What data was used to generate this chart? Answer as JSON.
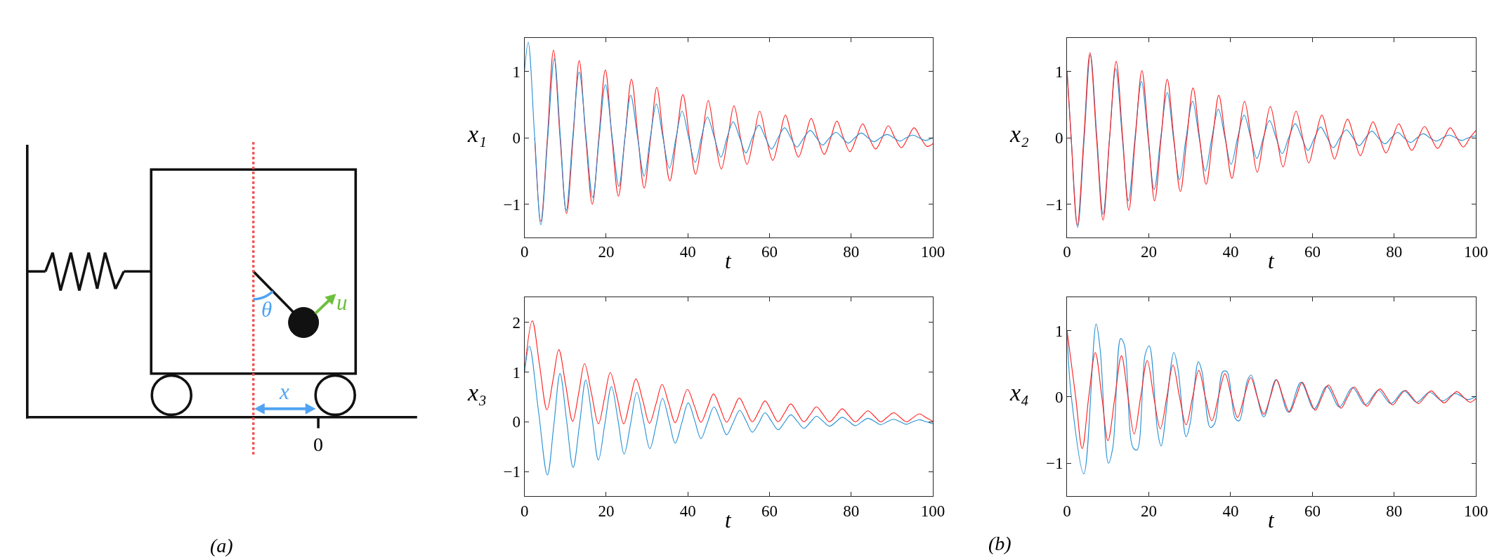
{
  "chart_data": [
    {
      "type": "other",
      "annotations": [
        "θ",
        "u",
        "x",
        "0",
        "(a)"
      ]
    },
    {
      "type": "line",
      "xlabel": "t",
      "ylabel": "x₁",
      "xlim": [
        0,
        100
      ],
      "xticks": [
        0,
        20,
        40,
        60,
        80,
        100
      ],
      "ylim": [
        -1.5,
        1.5
      ],
      "yticks": [
        -1,
        0,
        1
      ],
      "series": [
        {
          "color": "#ff2222",
          "x": [
            2.5,
            4.0,
            5.6,
            7.1,
            8.7,
            10.3,
            11.9,
            13.4,
            15.0,
            16.6,
            18.2,
            19.8,
            21.4,
            23.0,
            24.6,
            26.2,
            27.8,
            29.3,
            30.9,
            32.4,
            34.0,
            35.6,
            37.2,
            38.8,
            40.4,
            41.9,
            43.5,
            45.0,
            46.6,
            48.2,
            49.8,
            51.3,
            52.9,
            54.5,
            56.1,
            57.6,
            59.2,
            60.8,
            62.4,
            63.9,
            65.5,
            67.1,
            68.7,
            70.2,
            71.8,
            73.4,
            75.0,
            76.5,
            78.1,
            79.7,
            81.3,
            82.8,
            84.4,
            86.0,
            87.6,
            89.1,
            90.7,
            92.3,
            93.9,
            95.4,
            97.0,
            98.6,
            100
          ],
          "values": [
            0,
            -1.26,
            0,
            1.32,
            0,
            -1.14,
            0,
            1.16,
            0,
            -1.0,
            0,
            1.02,
            0,
            -0.88,
            0,
            0.88,
            0,
            -0.76,
            0,
            0.76,
            0,
            -0.65,
            0,
            0.65,
            0,
            -0.55,
            0,
            0.56,
            0,
            -0.47,
            0,
            0.48,
            0,
            -0.4,
            0,
            0.4,
            0,
            -0.34,
            0,
            0.34,
            0,
            -0.29,
            0,
            0.29,
            0,
            -0.25,
            0,
            0.25,
            0,
            -0.21,
            0,
            0.21,
            0,
            -0.17,
            0,
            0.18,
            0,
            -0.15,
            0,
            0.15,
            0,
            -0.13,
            -0.09
          ]
        },
        {
          "color": "#2a93d5",
          "x": [
            0,
            0.9,
            2.5,
            4.0,
            5.7,
            7.3,
            8.8,
            10.2,
            11.8,
            13.4,
            15.1,
            16.7,
            18.3,
            19.8,
            21.5,
            23.1,
            24.6,
            26.0,
            27.7,
            29.3,
            30.8,
            32.3,
            33.9,
            35.5,
            37.1,
            38.6,
            40.2,
            41.8,
            43.3,
            44.8,
            46.5,
            48.1,
            49.6,
            51.1,
            52.7,
            54.2,
            55.8,
            57.4,
            59.0,
            60.5,
            62.1,
            63.7,
            65.2,
            66.7,
            68.4,
            70.0,
            71.5,
            73.0,
            74.7,
            76.3,
            77.8,
            79.3,
            80.9,
            82.5,
            84.1,
            85.6,
            87.2,
            88.8,
            90.4,
            91.9,
            93.5,
            95.1,
            96.6,
            98.1,
            100
          ],
          "values": [
            1.0,
            1.44,
            0,
            -1.31,
            0,
            1.19,
            0,
            -1.1,
            0,
            0.99,
            0,
            -0.9,
            0,
            0.8,
            0,
            -0.73,
            0,
            0.64,
            0,
            -0.58,
            0,
            0.51,
            0,
            -0.46,
            0,
            0.4,
            0,
            -0.37,
            0,
            0.31,
            0,
            -0.29,
            0,
            0.24,
            0,
            -0.23,
            0,
            0.19,
            0,
            -0.17,
            0,
            0.15,
            0,
            -0.14,
            0,
            0.11,
            0,
            -0.11,
            0,
            0.08,
            0,
            -0.08,
            0,
            0.07,
            0,
            -0.06,
            0,
            0.05,
            0,
            -0.05,
            0,
            0.04,
            0,
            -0.04,
            0
          ]
        }
      ]
    },
    {
      "type": "line",
      "xlabel": "t",
      "ylabel": "x₂",
      "xlim": [
        0,
        100
      ],
      "xticks": [
        0,
        20,
        40,
        60,
        80,
        100
      ],
      "ylim": [
        -1.5,
        1.5
      ],
      "yticks": [
        -1,
        0,
        1
      ],
      "series": [
        {
          "color": "#2a93d5",
          "x": [
            0,
            1.0,
            2.6,
            4.2,
            5.7,
            7.3,
            8.8,
            10.4,
            11.9,
            13.5,
            15.0,
            16.6,
            18.2,
            19.8,
            21.3,
            22.9,
            24.5,
            26.0,
            27.5,
            29.1,
            30.7,
            32.3,
            33.8,
            35.4,
            37.0,
            38.6,
            40.1,
            41.7,
            43.3,
            44.9,
            46.4,
            48.0,
            49.5,
            51.1,
            52.6,
            54.2,
            55.8,
            57.4,
            58.9,
            60.5,
            62.0,
            63.6,
            65.1,
            66.7,
            68.3,
            69.9,
            71.4,
            73.0,
            74.5,
            76.1,
            77.7,
            79.3,
            80.8,
            82.4,
            84.0,
            85.6,
            87.1,
            88.7,
            90.3,
            91.9,
            93.4,
            95.0,
            96.5,
            98.1,
            100
          ],
          "values": [
            1.0,
            0,
            -1.35,
            0,
            1.25,
            0,
            -1.15,
            0,
            1.04,
            0,
            -0.95,
            0,
            0.85,
            0,
            -0.78,
            0,
            0.68,
            0,
            -0.63,
            0,
            0.55,
            0,
            -0.5,
            0,
            0.43,
            0,
            -0.4,
            0,
            0.34,
            0,
            -0.31,
            0,
            0.26,
            0,
            -0.24,
            0,
            0.21,
            0,
            -0.19,
            0,
            0.16,
            0,
            -0.15,
            0,
            0.12,
            0,
            -0.12,
            0,
            0.1,
            0,
            -0.09,
            0,
            0.08,
            0,
            -0.07,
            0,
            0.06,
            0,
            -0.05,
            0,
            0.04,
            0,
            -0.04,
            0,
            0.03
          ]
        },
        {
          "color": "#ff2222",
          "x": [
            0,
            1.0,
            2.5,
            4.1,
            5.6,
            7.2,
            8.8,
            10.4,
            12.0,
            13.6,
            15.1,
            16.7,
            18.3,
            19.9,
            21.4,
            23.0,
            24.5,
            26.1,
            27.7,
            29.3,
            30.8,
            32.4,
            34.0,
            35.6,
            37.1,
            38.7,
            40.3,
            41.9,
            43.4,
            45.0,
            46.5,
            48.1,
            49.7,
            51.3,
            52.8,
            54.4,
            56.0,
            57.6,
            59.1,
            60.7,
            62.3,
            63.9,
            65.4,
            67.0,
            68.6,
            70.2,
            71.7,
            73.3,
            74.8,
            76.4,
            78.0,
            79.6,
            81.1,
            82.7,
            84.3,
            85.9,
            87.4,
            89.0,
            90.6,
            92.2,
            93.7,
            95.3,
            96.9,
            98.5,
            100
          ],
          "values": [
            1.0,
            0,
            -1.32,
            0,
            1.28,
            0,
            -1.24,
            0,
            1.15,
            0,
            -1.09,
            0,
            1.01,
            0,
            -0.95,
            0,
            0.88,
            0,
            -0.81,
            0,
            0.75,
            0,
            -0.7,
            0,
            0.64,
            0,
            -0.61,
            0,
            0.55,
            0,
            -0.52,
            0,
            0.47,
            0,
            -0.44,
            0,
            0.4,
            0,
            -0.38,
            0,
            0.34,
            0,
            -0.32,
            0,
            0.28,
            0,
            -0.27,
            0,
            0.24,
            0,
            -0.23,
            0,
            0.21,
            0,
            -0.19,
            0,
            0.17,
            0,
            -0.16,
            0,
            0.15,
            0,
            -0.14,
            0,
            0.11
          ]
        }
      ]
    },
    {
      "type": "line",
      "xlabel": "t",
      "ylabel": "x₃",
      "xlim": [
        0,
        100
      ],
      "xticks": [
        0,
        20,
        40,
        60,
        80,
        100
      ],
      "ylim": [
        -1.5,
        2.5
      ],
      "yticks": [
        -1,
        0,
        1,
        2
      ],
      "annotations": [
        "(b)"
      ],
      "series": [
        {
          "color": "#ff2222",
          "x": [
            0,
            1.9,
            3.7,
            5.5,
            7.0,
            8.4,
            10.1,
            11.8,
            13.3,
            14.7,
            16.4,
            18.1,
            19.6,
            21.0,
            22.7,
            24.3,
            25.8,
            27.3,
            29.0,
            30.6,
            32.2,
            33.7,
            35.3,
            36.9,
            38.4,
            39.9,
            41.6,
            43.2,
            44.8,
            46.3,
            47.9,
            49.5,
            51.1,
            52.6,
            54.2,
            55.8,
            57.4,
            58.9,
            60.5,
            62.1,
            63.7,
            65.2,
            66.8,
            68.4,
            70.0,
            71.5,
            73.1,
            74.7,
            76.3,
            77.8,
            79.4,
            81.0,
            82.6,
            84.1,
            85.7,
            87.2,
            88.8,
            90.4,
            92.0,
            93.5,
            95.1,
            96.7,
            98.4,
            100
          ],
          "values": [
            1.0,
            2.03,
            1.13,
            0.24,
            0.85,
            1.45,
            0.73,
            0.01,
            0.59,
            1.17,
            0.57,
            -0.04,
            0.48,
            0.99,
            0.48,
            -0.04,
            0.41,
            0.86,
            0.42,
            -0.03,
            0.36,
            0.75,
            0.37,
            -0.02,
            0.32,
            0.65,
            0.32,
            -0.01,
            0.28,
            0.56,
            0.28,
            -0.01,
            0.24,
            0.48,
            0.24,
            0,
            0.21,
            0.42,
            0.21,
            0,
            0.18,
            0.36,
            0.18,
            0,
            0.15,
            0.3,
            0.15,
            0,
            0.13,
            0.26,
            0.13,
            0,
            0.11,
            0.22,
            0.11,
            0,
            0.09,
            0.18,
            0.09,
            0,
            0.08,
            0.16,
            0.08,
            0.01
          ]
        },
        {
          "color": "#2a93d5",
          "x": [
            0,
            1.2,
            3.4,
            5.6,
            7.2,
            8.7,
            10.3,
            11.9,
            13.5,
            15.0,
            16.6,
            18.1,
            19.7,
            21.3,
            22.9,
            24.4,
            26.0,
            27.5,
            29.1,
            30.7,
            32.3,
            33.8,
            35.4,
            36.9,
            38.5,
            40.1,
            41.7,
            43.2,
            44.8,
            46.4,
            48.0,
            49.5,
            51.1,
            52.7,
            54.3,
            55.8,
            57.4,
            58.9,
            60.5,
            62.1,
            63.7,
            65.2,
            66.8,
            68.4,
            70.0,
            71.5,
            73.1,
            74.7,
            76.3,
            77.8,
            79.4,
            81.0,
            82.6,
            84.1,
            85.7,
            87.2,
            88.8,
            90.4,
            92.0,
            93.5,
            95.1,
            96.7,
            98.4,
            100
          ],
          "values": [
            1.0,
            1.52,
            0.23,
            -1.07,
            -0.05,
            0.97,
            0.03,
            -0.92,
            -0.04,
            0.84,
            0.04,
            -0.77,
            -0.03,
            0.71,
            0.03,
            -0.65,
            -0.03,
            0.59,
            0.03,
            -0.54,
            -0.04,
            0.47,
            0.02,
            -0.43,
            -0.03,
            0.38,
            0.02,
            -0.34,
            -0.02,
            0.3,
            0.02,
            -0.26,
            -0.02,
            0.23,
            0.01,
            -0.21,
            -0.02,
            0.18,
            0.01,
            -0.16,
            -0.01,
            0.14,
            0.01,
            -0.13,
            -0.01,
            0.11,
            0.01,
            -0.09,
            0,
            0.09,
            0.01,
            -0.08,
            0,
            0.07,
            0.01,
            -0.06,
            0,
            0.05,
            0,
            -0.05,
            0,
            0.04,
            0,
            -0.04
          ]
        }
      ]
    },
    {
      "type": "line",
      "xlabel": "t",
      "ylabel": "x₄",
      "xlim": [
        0,
        100
      ],
      "xticks": [
        0,
        20,
        40,
        60,
        80,
        100
      ],
      "ylim": [
        -1.5,
        1.5
      ],
      "yticks": [
        -1,
        0,
        1
      ],
      "series": [
        {
          "color": "#2a93d5",
          "x": [
            0,
            1.0,
            4.1,
            7.1,
            8.1,
            10.1,
            11.2,
            13.1,
            14.0,
            16.1,
            17.1,
            19.1,
            20.1,
            22.1,
            23.0,
            26.1,
            27.1,
            29.1,
            30.1,
            32.1,
            33.0,
            35.0,
            36.1,
            38.1,
            39.1,
            41.1,
            42.1,
            44.1,
            45.0,
            48.1,
            51.1,
            54.1,
            57.2,
            60.4,
            63.5,
            66.6,
            69.8,
            72.9,
            76.1,
            79.2,
            82.4,
            85.5,
            88.6,
            91.8,
            94.9,
            98.0,
            100
          ],
          "values": [
            1.0,
            0.03,
            -1.16,
            1.1,
            0.71,
            -1.0,
            -0.76,
            0.88,
            0.79,
            -0.76,
            -0.8,
            0.64,
            0.77,
            -0.5,
            -0.74,
            0.67,
            0.43,
            -0.6,
            -0.4,
            0.53,
            0.38,
            -0.46,
            -0.4,
            0.38,
            0.38,
            -0.32,
            -0.36,
            0.25,
            0.33,
            -0.3,
            0.26,
            -0.23,
            0.22,
            -0.18,
            0.16,
            -0.15,
            0.14,
            -0.12,
            0.1,
            -0.1,
            0.09,
            -0.08,
            0.07,
            -0.06,
            0.05,
            -0.04,
            0.01
          ]
        },
        {
          "color": "#ff2222",
          "x": [
            0,
            2.1,
            3.7,
            5.3,
            6.9,
            8.5,
            10.0,
            11.7,
            13.3,
            14.9,
            16.4,
            18.0,
            19.6,
            21.2,
            22.8,
            24.4,
            25.9,
            27.5,
            29.1,
            30.7,
            32.2,
            33.8,
            35.4,
            37.0,
            38.6,
            40.2,
            41.7,
            43.3,
            44.9,
            46.5,
            48.1,
            49.7,
            51.2,
            52.8,
            54.4,
            56.0,
            57.5,
            59.1,
            60.7,
            62.3,
            63.9,
            65.5,
            67.0,
            68.6,
            70.2,
            71.8,
            73.3,
            74.9,
            76.5,
            78.1,
            79.6,
            81.2,
            82.7,
            84.3,
            85.9,
            87.5,
            89.0,
            90.6,
            92.2,
            93.8,
            95.3,
            96.9,
            98.5,
            100
          ],
          "values": [
            1.0,
            0,
            -0.78,
            0,
            0.67,
            0,
            -0.66,
            0,
            0.62,
            0,
            -0.56,
            0,
            0.55,
            0,
            -0.48,
            0,
            0.48,
            0,
            -0.42,
            0,
            0.4,
            0,
            -0.36,
            0,
            0.35,
            0,
            -0.31,
            0,
            0.29,
            0,
            -0.26,
            0,
            0.26,
            0,
            -0.23,
            0,
            0.22,
            0,
            -0.2,
            0,
            0.18,
            0,
            -0.17,
            0,
            0.15,
            0,
            -0.14,
            0,
            0.12,
            0,
            -0.12,
            0,
            0.1,
            0,
            -0.1,
            0,
            0.09,
            0,
            -0.09,
            0,
            0.08,
            0,
            -0.08,
            -0.02
          ]
        }
      ]
    }
  ]
}
